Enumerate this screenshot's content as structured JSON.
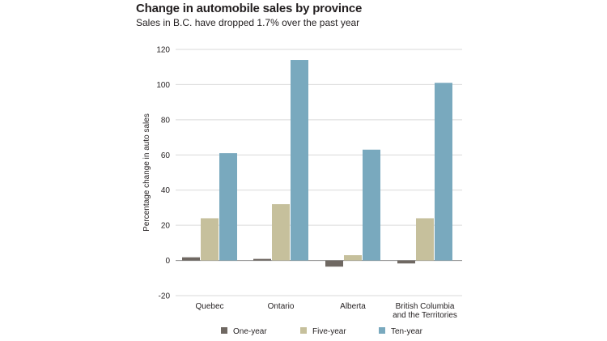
{
  "title": "Change in automobile sales by province",
  "subtitle": "Sales in B.C. have dropped 1.7% over the past year",
  "colors": {
    "one_year": "#6f6862",
    "five_year": "#c6c09c",
    "ten_year": "#79a9be",
    "grid": "#d9d9d9",
    "axis": "#8c8c8c"
  },
  "chart_data": {
    "type": "bar",
    "title": "Change in automobile sales by province",
    "subtitle": "Sales in B.C. have dropped 1.7% over the past year",
    "xlabel": "",
    "ylabel": "Percentage change in auto sales",
    "ylim": [
      -20,
      120
    ],
    "yticks": [
      -20,
      0,
      20,
      40,
      60,
      80,
      100,
      120
    ],
    "grid": true,
    "legend": "bottom",
    "categories": [
      [
        "Quebec"
      ],
      [
        "Ontario"
      ],
      [
        "Alberta"
      ],
      [
        "British Columbia",
        "and the Territories"
      ]
    ],
    "series": [
      {
        "name": "One-year",
        "values": [
          1.8,
          0.9,
          -3.5,
          -1.7
        ]
      },
      {
        "name": "Five-year",
        "values": [
          24,
          32,
          3,
          24
        ]
      },
      {
        "name": "Ten-year",
        "values": [
          61,
          114,
          63,
          101
        ]
      }
    ]
  }
}
